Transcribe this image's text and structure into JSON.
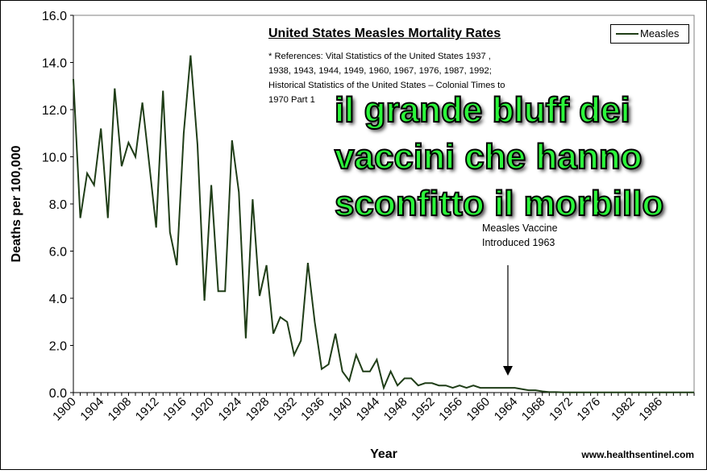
{
  "headline_lines": [
    "il grande bluff dei",
    "vaccini che hanno",
    "sconfitto il morbillo"
  ],
  "website": "www.healthsentinel.com",
  "colors": {
    "line": "#1f3d17",
    "headline": "#2bf53a",
    "headline_outline": "#000000"
  },
  "chart_data": {
    "type": "line",
    "title": "United States Measles Mortality Rates",
    "references": [
      "* References: Vital Statistics of the United States 1937 ,",
      "1938, 1943, 1944, 1949, 1960, 1967, 1976, 1987, 1992;",
      "Historical Statistics of the United States – Colonial Times to",
      "1970 Part 1"
    ],
    "xlabel": "Year",
    "ylabel": "Deaths per 100,000",
    "ylim": [
      0,
      16
    ],
    "y_ticks": [
      "0.0",
      "2.0",
      "4.0",
      "6.0",
      "8.0",
      "10.0",
      "12.0",
      "14.0",
      "16.0"
    ],
    "x_ticks": [
      "1900",
      "1904",
      "1908",
      "1912",
      "1916",
      "1920",
      "1924",
      "1928",
      "1932",
      "1936",
      "1940",
      "1944",
      "1948",
      "1952",
      "1956",
      "1960",
      "1964",
      "1968",
      "1972",
      "1976",
      "1982",
      "1986"
    ],
    "legend": {
      "label": "Measles",
      "position": "top-right"
    },
    "grid": false,
    "annotation": {
      "lines": [
        "Measles Vaccine",
        "Introduced 1963"
      ],
      "x": 1963
    },
    "series": [
      {
        "name": "Measles",
        "x": [
          1900,
          1901,
          1902,
          1903,
          1904,
          1905,
          1906,
          1907,
          1908,
          1909,
          1910,
          1911,
          1912,
          1913,
          1914,
          1915,
          1916,
          1917,
          1918,
          1919,
          1920,
          1921,
          1922,
          1923,
          1924,
          1925,
          1926,
          1927,
          1928,
          1929,
          1930,
          1931,
          1932,
          1933,
          1934,
          1935,
          1936,
          1937,
          1938,
          1939,
          1940,
          1941,
          1942,
          1943,
          1944,
          1945,
          1946,
          1947,
          1948,
          1949,
          1950,
          1951,
          1952,
          1953,
          1954,
          1955,
          1956,
          1957,
          1958,
          1959,
          1960,
          1961,
          1962,
          1963,
          1964,
          1965,
          1966,
          1967,
          1968,
          1969,
          1970,
          1971,
          1972,
          1973,
          1974,
          1975,
          1976,
          1977,
          1978,
          1979,
          1980,
          1981,
          1982,
          1983,
          1984,
          1985,
          1986,
          1987,
          1988,
          1989,
          1990
        ],
        "values": [
          13.3,
          7.4,
          9.3,
          8.8,
          11.2,
          7.4,
          12.9,
          9.6,
          10.6,
          10.0,
          12.3,
          9.7,
          7.0,
          12.8,
          6.8,
          5.4,
          11.0,
          14.3,
          10.5,
          3.9,
          8.8,
          4.3,
          4.3,
          10.7,
          8.5,
          2.3,
          8.2,
          4.1,
          5.4,
          2.5,
          3.2,
          3.0,
          1.6,
          2.2,
          5.5,
          3.0,
          1.0,
          1.2,
          2.5,
          0.9,
          0.5,
          1.6,
          0.9,
          0.9,
          1.4,
          0.2,
          0.9,
          0.3,
          0.6,
          0.6,
          0.3,
          0.4,
          0.4,
          0.3,
          0.3,
          0.2,
          0.3,
          0.2,
          0.3,
          0.2,
          0.2,
          0.2,
          0.2,
          0.2,
          0.2,
          0.15,
          0.1,
          0.1,
          0.05,
          0.02,
          0.02,
          0.01,
          0.01,
          0.01,
          0.01,
          0.01,
          0.01,
          0.01,
          0.01,
          0.01,
          0.01,
          0.01,
          0.01,
          0.01,
          0.01,
          0.01,
          0.01,
          0.01,
          0.01,
          0.01,
          0.01
        ]
      }
    ]
  }
}
